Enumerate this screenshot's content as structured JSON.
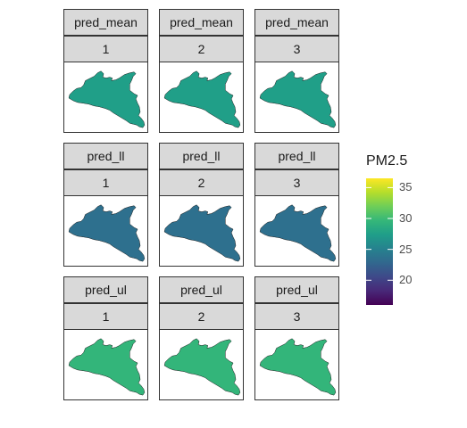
{
  "chart_data": {
    "type": "choropleth-facet",
    "facet_rows": [
      "pred_mean",
      "pred_ll",
      "pred_ul"
    ],
    "facet_cols": [
      "1",
      "2",
      "3"
    ],
    "values": [
      [
        27.5,
        27.5,
        27.5
      ],
      [
        23.5,
        23.5,
        23.5
      ],
      [
        29.5,
        29.5,
        29.5
      ]
    ],
    "legend": {
      "title": "PM2.5",
      "min": 16,
      "max": 36.5,
      "ticks": [
        20,
        25,
        30,
        35
      ],
      "tick_labels": [
        "20",
        "25",
        "30",
        "35"
      ],
      "palette": [
        "#440154",
        "#482878",
        "#3e4989",
        "#31688e",
        "#26828e",
        "#1f9e89",
        "#35b779",
        "#6ece58",
        "#b5de2b",
        "#fde725"
      ]
    },
    "grid": false
  }
}
